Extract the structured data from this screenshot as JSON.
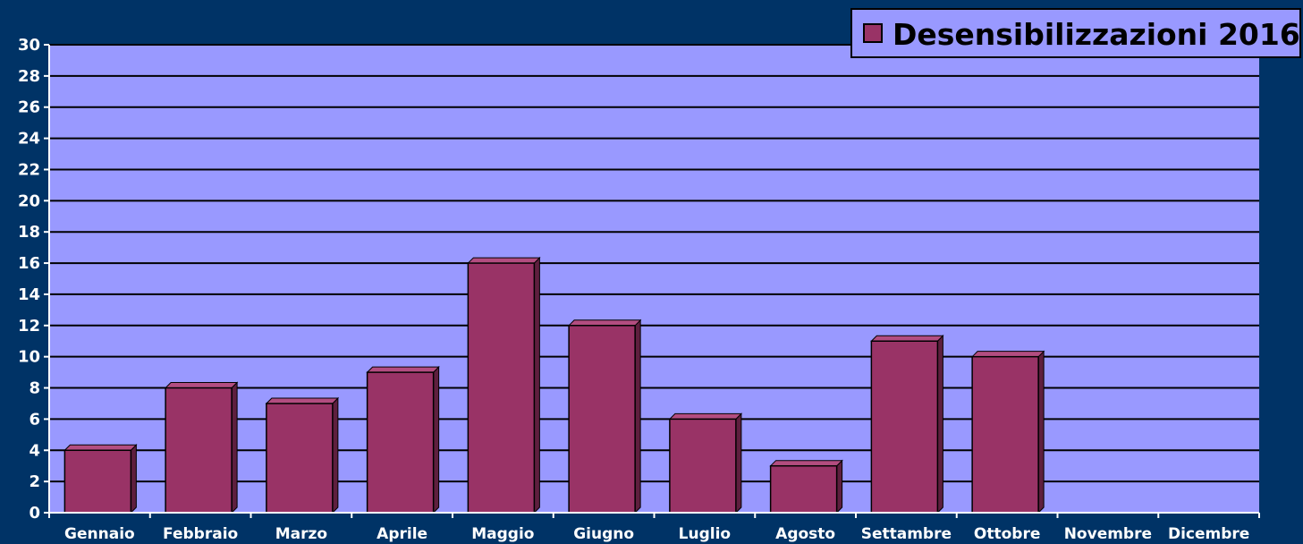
{
  "chart_data": {
    "type": "bar",
    "categories": [
      "Gennaio",
      "Febbraio",
      "Marzo",
      "Aprile",
      "Maggio",
      "Giugno",
      "Luglio",
      "Agosto",
      "Settambre",
      "Ottobre",
      "Novembre",
      "Dicembre"
    ],
    "series": [
      {
        "name": "Desensibilizzazioni 2016",
        "values": [
          4,
          8,
          7,
          9,
          16,
          12,
          6,
          3,
          11,
          10,
          0,
          0
        ]
      }
    ],
    "title": "",
    "xlabel": "",
    "ylabel": "",
    "ylim": [
      0,
      30
    ],
    "yticks": [
      0,
      2,
      4,
      6,
      8,
      10,
      12,
      14,
      16,
      18,
      20,
      22,
      24,
      26,
      28,
      30
    ],
    "grid": true,
    "legend_position": "top-right",
    "colors": {
      "page_background": "#003366",
      "plot_background": "#9999ff",
      "bar_fill": "#993366",
      "bar_side": "#5e1f3e",
      "bar_top": "#b34d80",
      "gridline": "#000000",
      "axis_text": "#ffffff"
    }
  }
}
